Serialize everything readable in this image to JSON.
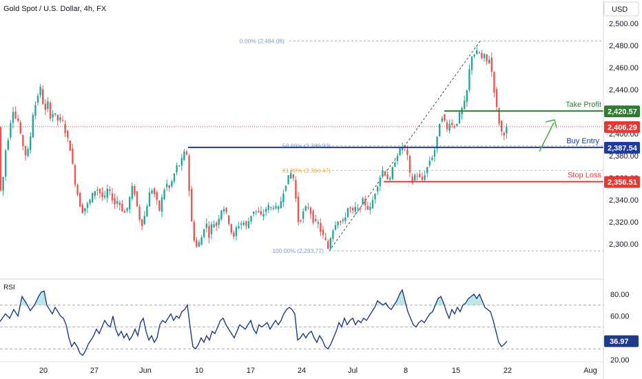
{
  "chart_data": {
    "type": "candlestick",
    "title": "Gold Spot / U.S. Dollar, 4h, FX",
    "currency": "USD",
    "x_ticks": [
      "20",
      "27",
      "Jun",
      "10",
      "17",
      "24",
      "Jul",
      "8",
      "15",
      "22",
      "Aug"
    ],
    "price_axis": {
      "range": [
        2285,
        2510
      ],
      "ticks": [
        "2,500.00",
        "2,480.00",
        "2,460.00",
        "2,440.00",
        "2,420.00",
        "2,400.00",
        "2,380.00",
        "2,360.00",
        "2,340.00",
        "2,320.00",
        "2,300.00"
      ]
    },
    "price_path": [
      [
        0,
        2340
      ],
      [
        6,
        2358
      ],
      [
        10,
        2385
      ],
      [
        15,
        2400
      ],
      [
        20,
        2425
      ],
      [
        23,
        2412
      ],
      [
        27,
        2418
      ],
      [
        29,
        2405
      ],
      [
        33,
        2395
      ],
      [
        37,
        2385
      ],
      [
        40,
        2378
      ],
      [
        45,
        2392
      ],
      [
        48,
        2410
      ],
      [
        51,
        2425
      ],
      [
        56,
        2428
      ],
      [
        58,
        2446
      ],
      [
        61,
        2440
      ],
      [
        64,
        2428
      ],
      [
        67,
        2418
      ],
      [
        70,
        2432
      ],
      [
        75,
        2415
      ],
      [
        80,
        2420
      ],
      [
        85,
        2412
      ],
      [
        90,
        2414
      ],
      [
        95,
        2408
      ],
      [
        98,
        2395
      ],
      [
        101,
        2395
      ],
      [
        104,
        2385
      ],
      [
        108,
        2368
      ],
      [
        112,
        2350
      ],
      [
        116,
        2342
      ],
      [
        120,
        2328
      ],
      [
        124,
        2332
      ],
      [
        128,
        2335
      ],
      [
        133,
        2340
      ],
      [
        138,
        2348
      ],
      [
        143,
        2350
      ],
      [
        148,
        2345
      ],
      [
        153,
        2340
      ],
      [
        158,
        2350
      ],
      [
        163,
        2344
      ],
      [
        168,
        2336
      ],
      [
        173,
        2340
      ],
      [
        178,
        2332
      ],
      [
        183,
        2328
      ],
      [
        188,
        2335
      ],
      [
        193,
        2352
      ],
      [
        198,
        2345
      ],
      [
        203,
        2325
      ],
      [
        208,
        2318
      ],
      [
        213,
        2328
      ],
      [
        218,
        2345
      ],
      [
        223,
        2350
      ],
      [
        228,
        2342
      ],
      [
        233,
        2330
      ],
      [
        238,
        2345
      ],
      [
        243,
        2355
      ],
      [
        248,
        2350
      ],
      [
        253,
        2360
      ],
      [
        258,
        2370
      ],
      [
        263,
        2372
      ],
      [
        268,
        2380
      ],
      [
        272,
        2388
      ],
      [
        275,
        2365
      ],
      [
        278,
        2330
      ],
      [
        282,
        2310
      ],
      [
        286,
        2296
      ],
      [
        290,
        2300
      ],
      [
        294,
        2305
      ],
      [
        298,
        2315
      ],
      [
        302,
        2318
      ],
      [
        306,
        2305
      ],
      [
        310,
        2322
      ],
      [
        315,
        2315
      ],
      [
        320,
        2325
      ],
      [
        325,
        2335
      ],
      [
        329,
        2330
      ],
      [
        333,
        2322
      ],
      [
        337,
        2312
      ],
      [
        341,
        2305
      ],
      [
        345,
        2315
      ],
      [
        350,
        2318
      ],
      [
        355,
        2320
      ],
      [
        360,
        2315
      ],
      [
        365,
        2325
      ],
      [
        370,
        2330
      ],
      [
        375,
        2330
      ],
      [
        380,
        2325
      ],
      [
        385,
        2328
      ],
      [
        390,
        2335
      ],
      [
        395,
        2332
      ],
      [
        400,
        2335
      ],
      [
        405,
        2330
      ],
      [
        410,
        2340
      ],
      [
        415,
        2352
      ],
      [
        420,
        2360
      ],
      [
        425,
        2365
      ],
      [
        430,
        2355
      ],
      [
        433,
        2320
      ],
      [
        438,
        2322
      ],
      [
        443,
        2330
      ],
      [
        448,
        2335
      ],
      [
        453,
        2328
      ],
      [
        458,
        2318
      ],
      [
        463,
        2320
      ],
      [
        468,
        2310
      ],
      [
        473,
        2305
      ],
      [
        478,
        2296
      ],
      [
        483,
        2310
      ],
      [
        488,
        2318
      ],
      [
        493,
        2322
      ],
      [
        498,
        2318
      ],
      [
        503,
        2325
      ],
      [
        508,
        2335
      ],
      [
        513,
        2328
      ],
      [
        518,
        2333
      ],
      [
        523,
        2330
      ],
      [
        528,
        2340
      ],
      [
        533,
        2335
      ],
      [
        538,
        2330
      ],
      [
        543,
        2340
      ],
      [
        548,
        2350
      ],
      [
        553,
        2360
      ],
      [
        558,
        2368
      ],
      [
        563,
        2360
      ],
      [
        568,
        2358
      ],
      [
        573,
        2372
      ],
      [
        578,
        2380
      ],
      [
        583,
        2386
      ],
      [
        588,
        2390
      ],
      [
        593,
        2380
      ],
      [
        597,
        2362
      ],
      [
        601,
        2355
      ],
      [
        605,
        2365
      ],
      [
        610,
        2360
      ],
      [
        615,
        2358
      ],
      [
        620,
        2366
      ],
      [
        625,
        2375
      ],
      [
        630,
        2380
      ],
      [
        635,
        2390
      ],
      [
        640,
        2410
      ],
      [
        645,
        2418
      ],
      [
        650,
        2402
      ],
      [
        655,
        2412
      ],
      [
        660,
        2405
      ],
      [
        665,
        2410
      ],
      [
        670,
        2420
      ],
      [
        675,
        2425
      ],
      [
        680,
        2440
      ],
      [
        684,
        2462
      ],
      [
        688,
        2475
      ],
      [
        692,
        2470
      ],
      [
        696,
        2478
      ],
      [
        700,
        2466
      ],
      [
        704,
        2472
      ],
      [
        708,
        2465
      ],
      [
        712,
        2468
      ],
      [
        716,
        2455
      ],
      [
        720,
        2435
      ],
      [
        724,
        2418
      ],
      [
        728,
        2405
      ],
      [
        732,
        2398
      ],
      [
        736,
        2404
      ],
      [
        738,
        2406
      ]
    ],
    "rsi": {
      "label": "RSI",
      "range": [
        20,
        90
      ],
      "ticks": [
        "80.00",
        "60.00",
        "40.00",
        "20.00"
      ],
      "levels": [
        70,
        50,
        30
      ],
      "current": "36.97",
      "path": [
        [
          0,
          55
        ],
        [
          8,
          62
        ],
        [
          14,
          58
        ],
        [
          20,
          66
        ],
        [
          26,
          60
        ],
        [
          32,
          78
        ],
        [
          38,
          72
        ],
        [
          44,
          65
        ],
        [
          50,
          70
        ],
        [
          56,
          78
        ],
        [
          60,
          82
        ],
        [
          64,
          83
        ],
        [
          68,
          70
        ],
        [
          72,
          66
        ],
        [
          76,
          62
        ],
        [
          80,
          68
        ],
        [
          84,
          64
        ],
        [
          88,
          60
        ],
        [
          92,
          58
        ],
        [
          96,
          52
        ],
        [
          100,
          40
        ],
        [
          104,
          32
        ],
        [
          108,
          36
        ],
        [
          112,
          32
        ],
        [
          116,
          26
        ],
        [
          120,
          24
        ],
        [
          124,
          28
        ],
        [
          128,
          34
        ],
        [
          132,
          38
        ],
        [
          136,
          42
        ],
        [
          140,
          48
        ],
        [
          144,
          44
        ],
        [
          148,
          50
        ],
        [
          152,
          56
        ],
        [
          156,
          52
        ],
        [
          160,
          50
        ],
        [
          164,
          60
        ],
        [
          168,
          48
        ],
        [
          172,
          42
        ],
        [
          176,
          46
        ],
        [
          180,
          40
        ],
        [
          184,
          44
        ],
        [
          188,
          38
        ],
        [
          192,
          42
        ],
        [
          196,
          48
        ],
        [
          200,
          42
        ],
        [
          204,
          54
        ],
        [
          208,
          58
        ],
        [
          212,
          46
        ],
        [
          216,
          38
        ],
        [
          220,
          42
        ],
        [
          224,
          36
        ],
        [
          228,
          40
        ],
        [
          232,
          52
        ],
        [
          236,
          56
        ],
        [
          240,
          54
        ],
        [
          244,
          58
        ],
        [
          248,
          62
        ],
        [
          252,
          56
        ],
        [
          256,
          60
        ],
        [
          260,
          58
        ],
        [
          264,
          64
        ],
        [
          268,
          66
        ],
        [
          272,
          70
        ],
        [
          276,
          50
        ],
        [
          280,
          32
        ],
        [
          284,
          30
        ],
        [
          288,
          34
        ],
        [
          292,
          40
        ],
        [
          296,
          36
        ],
        [
          300,
          42
        ],
        [
          304,
          38
        ],
        [
          308,
          46
        ],
        [
          312,
          44
        ],
        [
          316,
          50
        ],
        [
          320,
          56
        ],
        [
          324,
          58
        ],
        [
          328,
          52
        ],
        [
          332,
          48
        ],
        [
          336,
          44
        ],
        [
          340,
          40
        ],
        [
          344,
          46
        ],
        [
          348,
          52
        ],
        [
          352,
          50
        ],
        [
          356,
          48
        ],
        [
          360,
          52
        ],
        [
          364,
          56
        ],
        [
          368,
          48
        ],
        [
          372,
          44
        ],
        [
          376,
          52
        ],
        [
          380,
          50
        ],
        [
          384,
          52
        ],
        [
          388,
          54
        ],
        [
          392,
          48
        ],
        [
          396,
          52
        ],
        [
          400,
          56
        ],
        [
          404,
          52
        ],
        [
          408,
          56
        ],
        [
          412,
          62
        ],
        [
          416,
          66
        ],
        [
          420,
          68
        ],
        [
          424,
          66
        ],
        [
          428,
          62
        ],
        [
          432,
          38
        ],
        [
          436,
          40
        ],
        [
          440,
          44
        ],
        [
          444,
          40
        ],
        [
          448,
          44
        ],
        [
          452,
          46
        ],
        [
          456,
          40
        ],
        [
          460,
          36
        ],
        [
          464,
          42
        ],
        [
          468,
          38
        ],
        [
          472,
          32
        ],
        [
          476,
          30
        ],
        [
          480,
          34
        ],
        [
          484,
          40
        ],
        [
          488,
          46
        ],
        [
          492,
          54
        ],
        [
          496,
          50
        ],
        [
          500,
          58
        ],
        [
          504,
          52
        ],
        [
          508,
          56
        ],
        [
          512,
          58
        ],
        [
          516,
          52
        ],
        [
          520,
          56
        ],
        [
          524,
          54
        ],
        [
          528,
          58
        ],
        [
          532,
          56
        ],
        [
          536,
          60
        ],
        [
          540,
          64
        ],
        [
          544,
          68
        ],
        [
          548,
          74
        ],
        [
          552,
          72
        ],
        [
          556,
          70
        ],
        [
          560,
          72
        ],
        [
          564,
          68
        ],
        [
          568,
          66
        ],
        [
          572,
          70
        ],
        [
          576,
          74
        ],
        [
          580,
          80
        ],
        [
          584,
          84
        ],
        [
          588,
          74
        ],
        [
          592,
          64
        ],
        [
          596,
          58
        ],
        [
          600,
          52
        ],
        [
          604,
          50
        ],
        [
          608,
          54
        ],
        [
          612,
          56
        ],
        [
          616,
          54
        ],
        [
          620,
          58
        ],
        [
          624,
          62
        ],
        [
          628,
          64
        ],
        [
          632,
          70
        ],
        [
          636,
          76
        ],
        [
          640,
          78
        ],
        [
          644,
          72
        ],
        [
          648,
          64
        ],
        [
          652,
          58
        ],
        [
          656,
          66
        ],
        [
          660,
          62
        ],
        [
          664,
          68
        ],
        [
          668,
          64
        ],
        [
          672,
          70
        ],
        [
          676,
          72
        ],
        [
          680,
          76
        ],
        [
          684,
          78
        ],
        [
          688,
          80
        ],
        [
          692,
          76
        ],
        [
          696,
          80
        ],
        [
          700,
          74
        ],
        [
          704,
          68
        ],
        [
          708,
          66
        ],
        [
          712,
          64
        ],
        [
          716,
          56
        ],
        [
          720,
          46
        ],
        [
          724,
          36
        ],
        [
          728,
          32
        ],
        [
          732,
          34
        ],
        [
          736,
          37
        ]
      ]
    },
    "levels": [
      {
        "name": "Take Profit",
        "value": "2,420.57",
        "price": 2420.57,
        "color": "#2e7d32"
      },
      {
        "name": "Buy Entry",
        "value": "2,387.54",
        "price": 2387.54,
        "color": "#1e3a9e"
      },
      {
        "name": "Stop Loss",
        "value": "2,356.51",
        "price": 2356.51,
        "color": "#e53935"
      }
    ],
    "current_price": {
      "value": "2,406.29",
      "price": 2406.29,
      "color": "#e53935"
    },
    "fibonacci": [
      {
        "label": "0.00% (2,484.08)",
        "price": 2484.08,
        "color": "#7a9cc6"
      },
      {
        "label": "50.00% (2,388.93)",
        "price": 2388.93,
        "color": "#7fa5d8"
      },
      {
        "label": "61.80% (2,366.47)",
        "price": 2366.47,
        "color": "#e8a93a"
      },
      {
        "label": "100.00% (2,293.77)",
        "price": 2293.77,
        "color": "#7a9cc6"
      }
    ],
    "colors": {
      "up": "#26a69a",
      "down": "#ef5350",
      "rsi_line": "#1e3a8a",
      "rsi_fill": "#b2dfdb"
    }
  }
}
